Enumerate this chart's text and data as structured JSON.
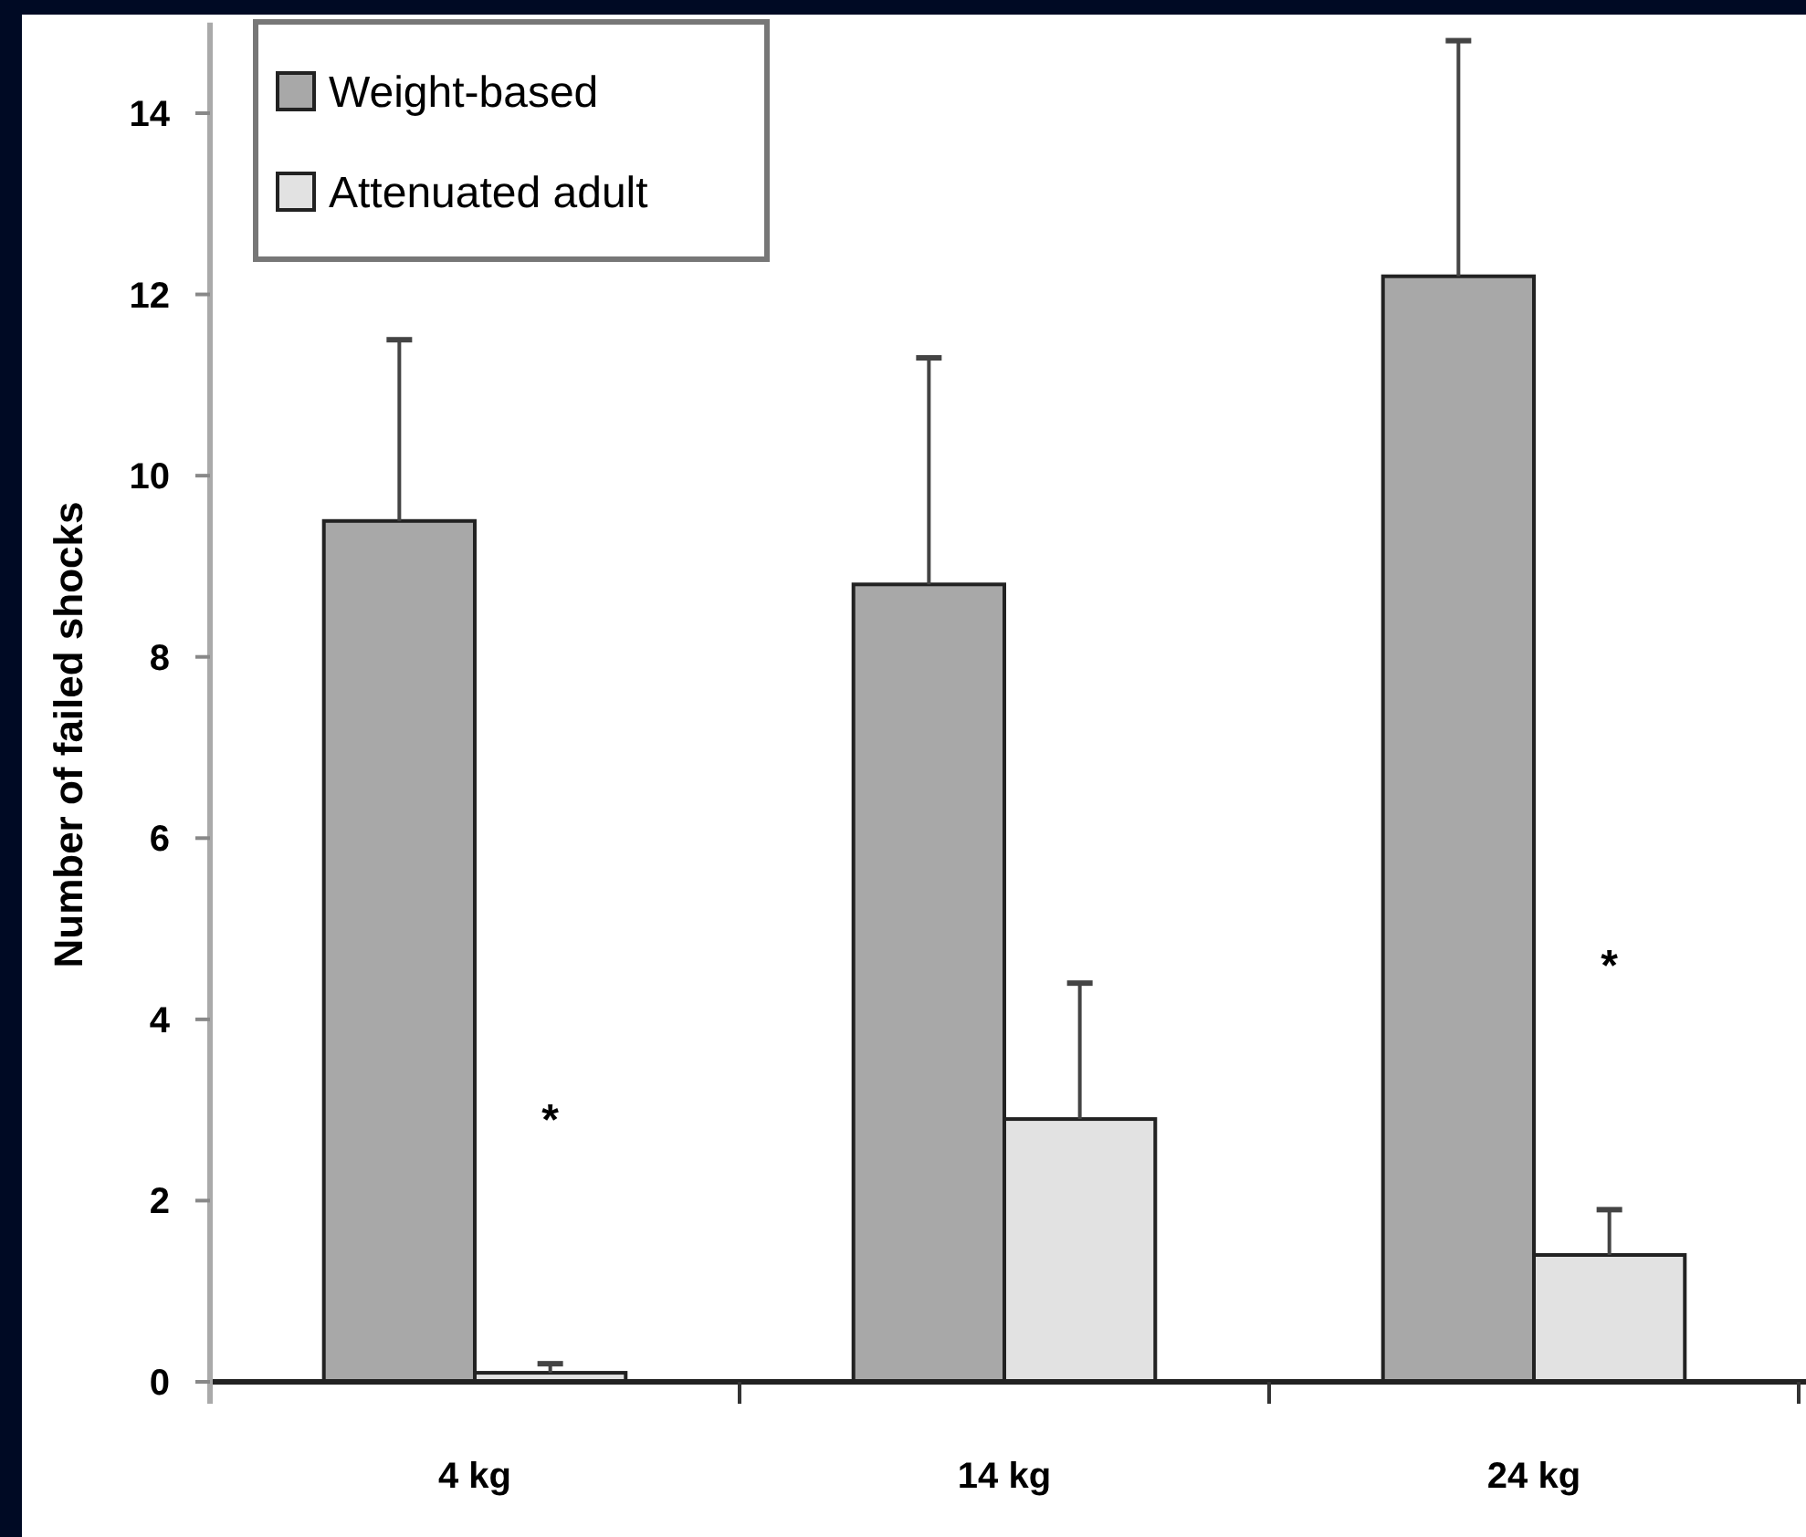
{
  "chart_data": {
    "type": "bar",
    "ylabel": "Number of failed shocks",
    "categories": [
      "4 kg",
      "14 kg",
      "24 kg"
    ],
    "series": [
      {
        "name": "Weight-based",
        "color": "#a8a8a8",
        "values": [
          9.5,
          8.8,
          12.2
        ],
        "errors": [
          2.0,
          2.5,
          2.6
        ]
      },
      {
        "name": "Attenuated adult",
        "color": "#e2e2e2",
        "values": [
          0.1,
          2.9,
          1.4
        ],
        "errors": [
          0.1,
          1.5,
          0.5
        ]
      }
    ],
    "ylim": [
      0,
      15
    ],
    "yticks": [
      0,
      2,
      4,
      6,
      8,
      10,
      12,
      14
    ],
    "grid": false,
    "legend": "top left",
    "annotations": [
      {
        "text": "*",
        "x": "4 kg",
        "y": 2.9
      },
      {
        "text": "*",
        "x": "24 kg",
        "y": 4.6
      }
    ]
  }
}
